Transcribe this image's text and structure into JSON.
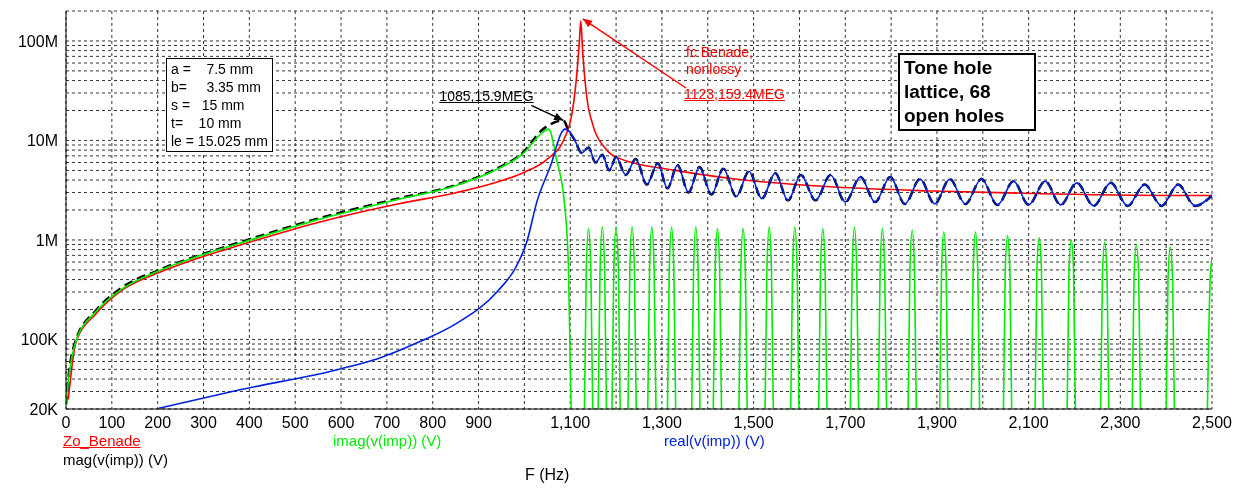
{
  "chart_data": {
    "type": "line",
    "xlabel": "F (Hz)",
    "log": "y",
    "grid": true,
    "legend": "bottom",
    "xlim": [
      0,
      2500
    ],
    "xticks": [
      0,
      100,
      200,
      300,
      400,
      500,
      600,
      700,
      800,
      900,
      {
        "value": 1000,
        "label": null
      },
      {
        "value": 1100,
        "label": "1,100"
      },
      {
        "value": 1200,
        "label": null
      },
      {
        "value": 1300,
        "label": "1,300"
      },
      {
        "value": 1400,
        "label": null
      },
      {
        "value": 1500,
        "label": "1,500"
      },
      {
        "value": 1600,
        "label": null
      },
      {
        "value": 1700,
        "label": "1,700"
      },
      {
        "value": 1800,
        "label": null
      },
      {
        "value": 1900,
        "label": "1,900"
      },
      {
        "value": 2000,
        "label": null
      },
      {
        "value": 2100,
        "label": "2,100"
      },
      {
        "value": 2200,
        "label": null
      },
      {
        "value": 2300,
        "label": "2,300"
      },
      {
        "value": 2400,
        "label": null
      },
      {
        "value": 2500,
        "label": "2,500"
      }
    ],
    "ylim": [
      20000,
      200000000
    ],
    "yticks": [
      {
        "value": 20000,
        "label": "20K"
      },
      {
        "value": 30000,
        "label": null
      },
      {
        "value": 40000,
        "label": null
      },
      {
        "value": 50000,
        "label": null
      },
      {
        "value": 60000,
        "label": null
      },
      {
        "value": 70000,
        "label": null
      },
      {
        "value": 80000,
        "label": null
      },
      {
        "value": 90000,
        "label": null
      },
      {
        "value": 100000,
        "label": "100K"
      },
      {
        "value": 200000,
        "label": null
      },
      {
        "value": 300000,
        "label": null
      },
      {
        "value": 400000,
        "label": null
      },
      {
        "value": 500000,
        "label": null
      },
      {
        "value": 600000,
        "label": null
      },
      {
        "value": 700000,
        "label": null
      },
      {
        "value": 800000,
        "label": null
      },
      {
        "value": 900000,
        "label": null
      },
      {
        "value": 1000000,
        "label": "1M"
      },
      {
        "value": 2000000,
        "label": null
      },
      {
        "value": 3000000,
        "label": null
      },
      {
        "value": 4000000,
        "label": null
      },
      {
        "value": 5000000,
        "label": null
      },
      {
        "value": 6000000,
        "label": null
      },
      {
        "value": 7000000,
        "label": null
      },
      {
        "value": 8000000,
        "label": null
      },
      {
        "value": 9000000,
        "label": null
      },
      {
        "value": 10000000,
        "label": "10M"
      },
      {
        "value": 20000000,
        "label": null
      },
      {
        "value": 30000000,
        "label": null
      },
      {
        "value": 40000000,
        "label": null
      },
      {
        "value": 50000000,
        "label": null
      },
      {
        "value": 60000000,
        "label": null
      },
      {
        "value": 70000000,
        "label": null
      },
      {
        "value": 80000000,
        "label": null
      },
      {
        "value": 90000000,
        "label": null
      },
      {
        "value": 100000000,
        "label": "100M"
      },
      {
        "value": 200000000,
        "label": null
      }
    ],
    "series": [
      {
        "name": "Zo_Benade",
        "color": "#ff0000",
        "x": [
          5,
          22,
          65,
          117,
          203,
          290,
          377,
          550,
          723,
          853,
          939,
          1000,
          1050,
          1085,
          1105,
          1115,
          1120,
          1123,
          1127,
          1135,
          1150,
          1175,
          1200,
          1330,
          1460,
          1677,
          1893,
          2153,
          2474,
          2500
        ],
        "values": [
          25000,
          95000,
          180000,
          300000,
          470000,
          660000,
          880000,
          1500000,
          2300000,
          3000000,
          3800000,
          4800000,
          6500000,
          10000000,
          20000000,
          50000000,
          100000000,
          159400000,
          80000000,
          30000000,
          14000000,
          8500000,
          6800000,
          5000000,
          4100000,
          3400000,
          3100000,
          2900000,
          2800000,
          2800000
        ]
      },
      {
        "name": "mag(v(imp)) (V)",
        "color": "#000000",
        "line_style": "dashed",
        "x": [
          0,
          5,
          22,
          65,
          117,
          203,
          290,
          377,
          550,
          723,
          853,
          939,
          1000,
          1035,
          1056,
          1085,
          1095,
          1110,
          1125,
          1140,
          1155,
          1170,
          1185,
          1200,
          1221,
          1243,
          1267,
          1291,
          1312,
          1334,
          1358,
          1382,
          1408,
          1434,
          1462,
          1490,
          1518,
          1547,
          1575,
          1603,
          1635,
          1668,
          1700,
          1733,
          1765,
          1798,
          1830,
          1863,
          1895,
          1928,
          1962,
          1997,
          2032,
          2067,
          2100,
          2136,
          2170,
          2205,
          2242,
          2279,
          2316,
          2353,
          2390,
          2426,
          2463,
          2500
        ],
        "values": [
          22000,
          40000,
          100000,
          195000,
          320000,
          500000,
          700000,
          940000,
          1640000,
          2600000,
          3600000,
          5200000,
          7800000,
          12300000,
          14500000,
          15900000,
          13000000,
          10000000,
          7500000,
          8500000,
          6000000,
          7200000,
          5000000,
          6800000,
          4500000,
          6500000,
          3600000,
          5900000,
          3300000,
          5650000,
          3000000,
          5400000,
          2860000,
          5200000,
          2730000,
          4900000,
          2600000,
          4700000,
          2500000,
          4500000,
          2500000,
          4500000,
          2400000,
          4300000,
          2400000,
          4300000,
          2300000,
          4100000,
          2300000,
          4100000,
          2300000,
          4100000,
          2250000,
          3900000,
          2250000,
          3900000,
          2250000,
          3750000,
          2200000,
          3750000,
          2200000,
          3600000,
          2200000,
          3600000,
          2200000,
          2800000
        ]
      },
      {
        "name": "imag(v(imp)) (V)",
        "color": "#00ee00",
        "x": [
          0,
          5,
          22,
          65,
          117,
          203,
          290,
          377,
          550,
          723,
          853,
          939,
          1000,
          1035,
          1053,
          1070,
          1088,
          1096,
          1102,
          1115,
          1131,
          1135,
          1140,
          1145,
          1149,
          1155,
          1161,
          1165,
          1170,
          1175,
          1179,
          1185,
          1191,
          1195,
          1200,
          1205,
          1209,
          1217,
          1226,
          1230,
          1235,
          1240,
          1244,
          1256,
          1269,
          1273,
          1278,
          1283,
          1287,
          1300,
          1312,
          1316,
          1321,
          1326,
          1330,
          1347,
          1365,
          1369,
          1374,
          1379,
          1383,
          1397,
          1412,
          1416,
          1421,
          1426,
          1430,
          1449,
          1468,
          1472,
          1477,
          1482,
          1486,
          1505,
          1525,
          1529,
          1534,
          1539,
          1543,
          1562,
          1581,
          1585,
          1590,
          1595,
          1599,
          1620,
          1642,
          1646,
          1651,
          1656,
          1660,
          1685,
          1711,
          1715,
          1720,
          1725,
          1729,
          1750,
          1772,
          1776,
          1781,
          1786,
          1790,
          1813,
          1837,
          1841,
          1846,
          1851,
          1855,
          1880,
          1906,
          1910,
          1915,
          1920,
          1924,
          1949,
          1975,
          1979,
          1984,
          1989,
          1993,
          2018,
          2045,
          2049,
          2054,
          2059,
          2063,
          2088,
          2114,
          2118,
          2123,
          2128,
          2132,
          2157,
          2184,
          2188,
          2193,
          2198,
          2202,
          2229,
          2257,
          2261,
          2266,
          2271,
          2275,
          2300,
          2326,
          2330,
          2335,
          2340,
          2344,
          2372,
          2400,
          2404,
          2409,
          2414,
          2418,
          2450,
          2490,
          2496,
          2500
        ],
        "values": [
          22000,
          38000,
          97000,
          190000,
          310000,
          490000,
          690000,
          920000,
          1600000,
          2550000,
          3550000,
          5100000,
          7600000,
          11500000,
          13000000,
          6500000,
          2200000,
          550000,
          20000,
          null,
          20000,
          500000,
          1300000,
          500000,
          20000,
          null,
          20000,
          500000,
          1350000,
          500000,
          20000,
          null,
          20000,
          500000,
          1350000,
          500000,
          20000,
          null,
          20000,
          500000,
          1350000,
          500000,
          20000,
          null,
          20000,
          500000,
          1350000,
          500000,
          20000,
          null,
          20000,
          500000,
          1350000,
          500000,
          20000,
          null,
          20000,
          500000,
          1350000,
          500000,
          20000,
          null,
          20000,
          500000,
          1300000,
          500000,
          20000,
          null,
          20000,
          500000,
          1300000,
          500000,
          20000,
          null,
          20000,
          500000,
          1350000,
          500000,
          20000,
          null,
          20000,
          500000,
          1350000,
          500000,
          20000,
          null,
          20000,
          500000,
          1300000,
          500000,
          20000,
          null,
          20000,
          500000,
          1350000,
          500000,
          20000,
          null,
          20000,
          500000,
          1300000,
          500000,
          20000,
          null,
          20000,
          500000,
          1250000,
          500000,
          20000,
          null,
          20000,
          500000,
          1200000,
          500000,
          20000,
          null,
          20000,
          500000,
          1200000,
          500000,
          20000,
          null,
          20000,
          500000,
          1100000,
          500000,
          20000,
          null,
          20000,
          500000,
          1050000,
          500000,
          20000,
          null,
          20000,
          500000,
          1000000,
          500000,
          20000,
          null,
          20000,
          450000,
          950000,
          450000,
          20000,
          null,
          20000,
          450000,
          900000,
          450000,
          20000,
          null,
          20000,
          400000,
          850000,
          400000,
          20000,
          null,
          20000,
          400000,
          650000
        ]
      },
      {
        "name": "real(v(imp)) (V)",
        "color": "#0022dd",
        "x": [
          203,
          377,
          594,
          680,
          767,
          853,
          940,
          983,
          1005,
          1027,
          1059,
          1081,
          1088,
          1100,
          1110,
          1125,
          1140,
          1155,
          1170,
          1185,
          1200,
          1221,
          1243,
          1267,
          1291,
          1312,
          1334,
          1358,
          1382,
          1408,
          1434,
          1462,
          1490,
          1518,
          1547,
          1575,
          1603,
          1635,
          1668,
          1700,
          1733,
          1765,
          1798,
          1830,
          1863,
          1895,
          1928,
          1962,
          1997,
          2032,
          2067,
          2100,
          2136,
          2170,
          2205,
          2242,
          2279,
          2316,
          2353,
          2390,
          2426,
          2463,
          2500
        ],
        "values": [
          20400,
          31000,
          50000,
          64000,
          93000,
          146000,
          300000,
          550000,
          950000,
          2400000,
          5900000,
          12000000,
          13000000,
          12000000,
          10000000,
          7500000,
          8500000,
          6000000,
          7200000,
          5000000,
          6800000,
          4500000,
          6500000,
          3600000,
          5900000,
          3300000,
          5650000,
          3000000,
          5400000,
          2860000,
          5200000,
          2730000,
          4900000,
          2600000,
          4700000,
          2500000,
          4500000,
          2500000,
          4500000,
          2400000,
          4300000,
          2400000,
          4300000,
          2300000,
          4100000,
          2300000,
          4100000,
          2300000,
          4100000,
          2250000,
          3900000,
          2250000,
          3900000,
          2250000,
          3750000,
          2200000,
          3750000,
          2200000,
          3600000,
          2200000,
          3600000,
          2200000,
          2800000
        ]
      }
    ],
    "annotations": [
      "a =    7.5 mm",
      "b=     3.35 mm",
      "s =   15 mm",
      "t=    10 mm",
      "le = 15.025 mm",
      {
        "text": "1085,15.9MEG",
        "x": 1085,
        "y": 15900000
      },
      "fc Benade, nonlossy",
      {
        "text": "1123,159.4MEG",
        "x": 1123,
        "y": 159400000
      },
      "Tone hole lattice, 68 open holes"
    ]
  }
}
